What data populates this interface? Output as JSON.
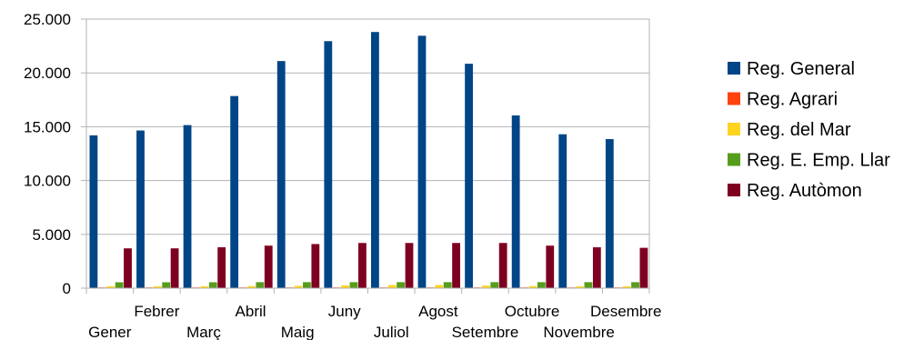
{
  "chart_data": {
    "type": "bar",
    "categories": [
      "Gener",
      "Febrer",
      "Març",
      "Abril",
      "Maig",
      "Juny",
      "Juliol",
      "Agost",
      "Setembre",
      "Octubre",
      "Novembre",
      "Desembre"
    ],
    "series": [
      {
        "name": "Reg. General",
        "color": "#004586",
        "values": [
          14200,
          14650,
          15150,
          17850,
          21100,
          22950,
          23800,
          23450,
          20850,
          16050,
          14300,
          13850
        ]
      },
      {
        "name": "Reg. Agrari",
        "color": "#ff420e",
        "values": [
          20,
          20,
          20,
          20,
          20,
          20,
          20,
          20,
          20,
          20,
          20,
          20
        ]
      },
      {
        "name": "Reg. del Mar",
        "color": "#ffd320",
        "values": [
          180,
          170,
          170,
          190,
          220,
          260,
          290,
          290,
          240,
          190,
          170,
          170
        ]
      },
      {
        "name": "Reg. E. Emp. Llar",
        "color": "#579d1c",
        "values": [
          550,
          550,
          550,
          560,
          560,
          560,
          560,
          560,
          560,
          560,
          560,
          560
        ]
      },
      {
        "name": "Reg. Autòmon",
        "color": "#7e0021",
        "values": [
          3700,
          3700,
          3800,
          3950,
          4100,
          4200,
          4200,
          4200,
          4200,
          3950,
          3800,
          3750
        ]
      }
    ],
    "yticks": [
      "0",
      "5.000",
      "10.000",
      "15.000",
      "20.000",
      "25.000"
    ],
    "ylim": [
      0,
      25000
    ],
    "grid": true,
    "legend": "right"
  }
}
